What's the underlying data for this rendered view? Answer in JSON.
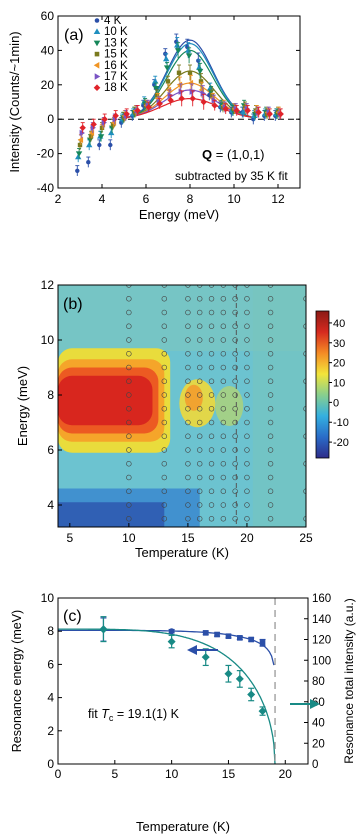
{
  "chart_data": [
    {
      "type": "scatter",
      "panel_label": "(a)",
      "xlabel": "Energy (meV)",
      "ylabel": "Intensity (Counts/~1min)",
      "xlim": [
        2,
        13
      ],
      "ylim": [
        -40,
        60
      ],
      "xticks": [
        "2",
        "4",
        "6",
        "8",
        "10",
        "12"
      ],
      "yticks": [
        "-40",
        "-20",
        "0",
        "20",
        "40",
        "60"
      ],
      "legend_position": "top-left",
      "annotation_q_bold": "Q",
      "annotation_q_rest": " = (1,0,1)",
      "annotation_sub": "subtracted by 35 K fit",
      "series": [
        {
          "name": "4 K",
          "color": "#2b4fa8",
          "marker": "circle",
          "amp": 46,
          "center": 8.0,
          "width": 1.05,
          "x": [
            3,
            3.5,
            4,
            4.5,
            5,
            5.5,
            6,
            6.5,
            7,
            7.5,
            8,
            8.5,
            9,
            9.5,
            10,
            10.5,
            11,
            11.5,
            12
          ],
          "y": [
            -30,
            -25,
            -15,
            -15,
            -2,
            2,
            8,
            20,
            38,
            45,
            42,
            34,
            14,
            7,
            4,
            4,
            0,
            2,
            2
          ]
        },
        {
          "name": "10 K",
          "color": "#1f8fbf",
          "marker": "triangle-up",
          "amp": 44,
          "center": 8.0,
          "width": 1.05,
          "x": [
            3,
            3.5,
            4,
            4.5,
            5,
            5.5,
            6,
            6.5,
            7,
            7.5,
            8,
            8.5,
            9,
            9.5,
            10,
            10.5,
            11,
            11.5,
            12
          ],
          "y": [
            -22,
            -15,
            -10,
            -8,
            0,
            3,
            10,
            22,
            35,
            43,
            40,
            30,
            18,
            8,
            5,
            4,
            2,
            3,
            3
          ]
        },
        {
          "name": "13 K",
          "color": "#17875a",
          "marker": "triangle-down",
          "amp": 40,
          "center": 8.0,
          "width": 1.05,
          "x": [
            3,
            3.5,
            4,
            4.5,
            5,
            5.5,
            6,
            6.5,
            7,
            7.5,
            8,
            8.5,
            9,
            9.5,
            10,
            10.5,
            11,
            11.5,
            12
          ],
          "y": [
            -20,
            -12,
            -10,
            -5,
            1,
            4,
            9,
            18,
            30,
            40,
            37,
            28,
            16,
            8,
            5,
            8,
            3,
            4,
            3
          ]
        },
        {
          "name": "15 K",
          "color": "#7a7a1e",
          "marker": "square",
          "amp": 28,
          "center": 8.0,
          "width": 1.1,
          "x": [
            3,
            3.5,
            4,
            4.5,
            5,
            5.5,
            6,
            6.5,
            7,
            7.5,
            8,
            8.5,
            9,
            9.5,
            10,
            10.5,
            11,
            11.5,
            12
          ],
          "y": [
            -15,
            -10,
            -5,
            -3,
            1,
            4,
            8,
            14,
            22,
            27,
            27,
            22,
            14,
            7,
            6,
            7,
            5,
            3,
            4
          ]
        },
        {
          "name": "16 K",
          "color": "#f09424",
          "marker": "triangle-left",
          "amp": 21,
          "center": 8.0,
          "width": 1.15,
          "x": [
            3,
            3.5,
            4,
            4.5,
            5,
            5.5,
            6,
            6.5,
            7,
            7.5,
            8,
            8.5,
            9,
            9.5,
            10,
            10.5,
            11,
            11.5,
            12
          ],
          "y": [
            -12,
            -8,
            -3,
            -2,
            2,
            5,
            8,
            12,
            17,
            20,
            21,
            17,
            12,
            8,
            6,
            6,
            5,
            4,
            4
          ]
        },
        {
          "name": "17 K",
          "color": "#7a54c4",
          "marker": "triangle-right",
          "amp": 17,
          "center": 8.0,
          "width": 1.2,
          "x": [
            3,
            3.5,
            4,
            4.5,
            5,
            5.5,
            6,
            6.5,
            7,
            7.5,
            8,
            8.5,
            9,
            9.5,
            10,
            10.5,
            11,
            11.5,
            12
          ],
          "y": [
            -8,
            -5,
            -2,
            0,
            2,
            5,
            8,
            10,
            14,
            16,
            16,
            15,
            11,
            7,
            6,
            6,
            4,
            4,
            3
          ]
        },
        {
          "name": "18 K",
          "color": "#e0232a",
          "marker": "diamond",
          "amp": 12,
          "center": 8.0,
          "width": 1.3,
          "x": [
            3,
            3.5,
            4,
            4.5,
            5,
            5.5,
            6,
            6.5,
            7,
            7.5,
            8,
            8.5,
            9,
            9.5,
            10,
            10.5,
            11,
            11.5,
            12
          ],
          "y": [
            -5,
            -3,
            0,
            2,
            3,
            5,
            7,
            9,
            11,
            12,
            12,
            10,
            8,
            6,
            5,
            5,
            4,
            3,
            3
          ]
        }
      ]
    },
    {
      "type": "heatmap",
      "panel_label": "(b)",
      "xlabel": "Temperature (K)",
      "ylabel": "Energy (meV)",
      "xlim": [
        4,
        25
      ],
      "ylim": [
        3.2,
        12
      ],
      "xticks": [
        "5",
        "10",
        "15",
        "20",
        "25"
      ],
      "yticks": [
        "4",
        "6",
        "8",
        "10",
        "12"
      ],
      "colorbar_ticks": [
        "40",
        "30",
        "20",
        "10",
        "0",
        "-10",
        "-20"
      ],
      "colorbar_range": [
        -28,
        46
      ],
      "colormap": [
        "#2e2c8a",
        "#2a6cc8",
        "#34b0e0",
        "#88cf8e",
        "#f2e53a",
        "#f58b25",
        "#d62a1f",
        "#8b1a15"
      ],
      "measurement_T": [
        10,
        13,
        15,
        16,
        17,
        18,
        19,
        20,
        22
      ],
      "measurement_E_min": 3.5,
      "measurement_E_max": 12,
      "measurement_E_step": 0.5
    },
    {
      "type": "scatter",
      "panel_label": "(c)",
      "xlabel": "Temperature (K)",
      "ylabel_left": "Resonance energy (meV)",
      "ylabel_right": "Resonance total intensity (a.u.)",
      "xlim": [
        0,
        22
      ],
      "ylim_left": [
        0,
        10
      ],
      "ylim_right": [
        0,
        160
      ],
      "xticks": [
        "0",
        "5",
        "10",
        "15",
        "20"
      ],
      "yticks_left": [
        "0",
        "2",
        "4",
        "6",
        "8",
        "10"
      ],
      "yticks_right": [
        "0",
        "20",
        "40",
        "60",
        "80",
        "100",
        "120",
        "140",
        "160"
      ],
      "fit_prefix": "fit ",
      "fit_T": "T",
      "fit_sub": "c",
      "fit_suffix": " = 19.1(1) K",
      "tc": 19.1,
      "series": [
        {
          "name": "Resonance energy",
          "axis": "left",
          "color": "#2b4fa8",
          "x": [
            4,
            10,
            13,
            14,
            15,
            16,
            17,
            18
          ],
          "y": [
            8.1,
            8.0,
            7.9,
            7.8,
            7.7,
            7.6,
            7.5,
            7.3
          ],
          "err": [
            0.7,
            0.1,
            0.1,
            0.1,
            0.1,
            0.1,
            0.1,
            0.2
          ]
        },
        {
          "name": "Resonance total intensity",
          "axis": "right",
          "color": "#188a85",
          "x": [
            4,
            10,
            13,
            15,
            16,
            17,
            18
          ],
          "y": [
            130,
            118,
            103,
            87,
            82,
            67,
            51
          ],
          "err": [
            12,
            6,
            8,
            8,
            8,
            6,
            4
          ]
        }
      ]
    }
  ]
}
